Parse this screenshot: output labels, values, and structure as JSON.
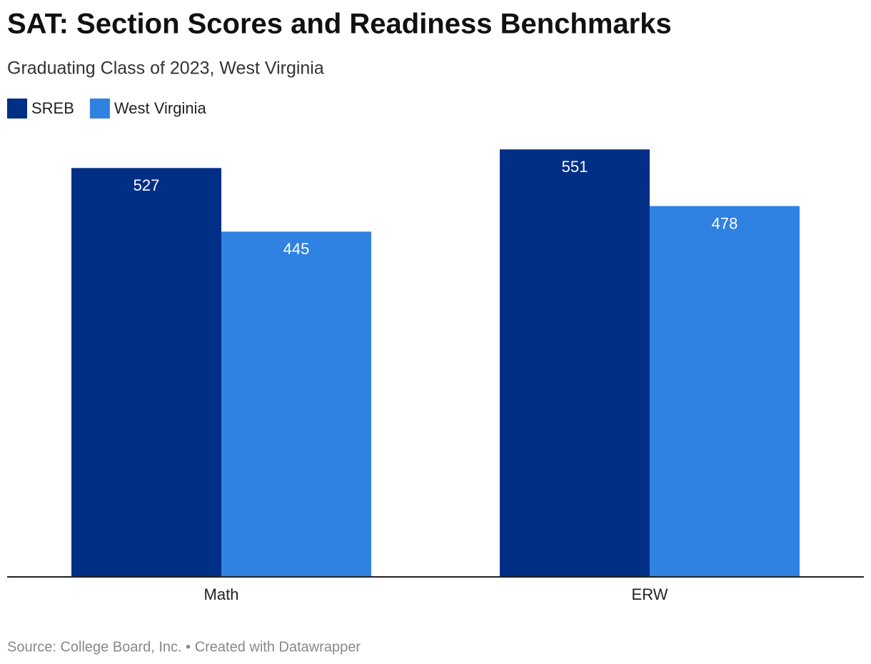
{
  "chart_data": {
    "type": "bar",
    "title": "SAT: Section Scores and Readiness Benchmarks",
    "subtitle": "Graduating Class of 2023, West Virginia",
    "categories": [
      "Math",
      "ERW"
    ],
    "series": [
      {
        "name": "SREB",
        "color": "#022f86",
        "values": [
          527,
          551
        ]
      },
      {
        "name": "West Virginia",
        "color": "#3082e2",
        "values": [
          445,
          478
        ]
      }
    ],
    "ylim": [
      0,
      600
    ],
    "source": "Source: College Board, Inc. • Created with Datawrapper"
  }
}
